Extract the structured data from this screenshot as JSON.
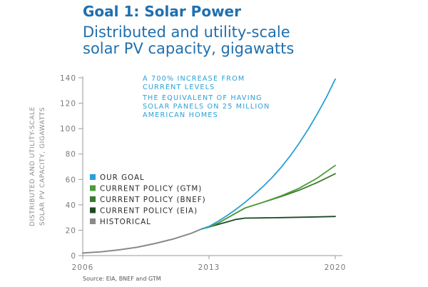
{
  "header": {
    "goal_title": "Goal 1: Solar Power",
    "subtitle_line1": "Distributed and utility-scale",
    "subtitle_line2": "solar PV capacity, gigawatts"
  },
  "source": "Source: EIA, BNEF and GTM",
  "colors": {
    "title": "#1f6fae",
    "annotation": "#2aa0d6",
    "our_goal": "#2aa0d6",
    "gtm": "#4f9a3a",
    "bnef": "#3c7a2c",
    "eia": "#1d4a22",
    "historical": "#8a8a8a",
    "axis": "#9a9a9a"
  },
  "chart_data": {
    "type": "line",
    "ylabel_line1": "DISTRIBUTED AND UTILITY-SCALE",
    "ylabel_line2": "SOLAR PV CAPACITY, GIGAWATTS",
    "xlabel": "",
    "xlim": [
      2006,
      2020
    ],
    "ylim": [
      0,
      140
    ],
    "x_ticks": [
      "2006",
      "2013",
      "2020"
    ],
    "y_ticks": [
      "0",
      "20",
      "40",
      "60",
      "80",
      "100",
      "120",
      "140"
    ],
    "grid": false,
    "legend_position": "left-middle",
    "annotations": [
      "A 700% INCREASE FROM",
      "CURRENT LEVELS",
      "THE EQUIVALENT OF HAVING",
      "SOLAR PANELS ON 25 MILLION",
      "AMERICAN HOMES"
    ],
    "series": [
      {
        "name": "OUR GOAL",
        "color": "#2aa0d6",
        "x": [
          2012.6,
          2013,
          2013.5,
          2014,
          2014.5,
          2015,
          2015.5,
          2016,
          2016.5,
          2017,
          2017.5,
          2018,
          2018.5,
          2019,
          2019.5,
          2020
        ],
        "y": [
          21,
          23,
          27,
          31.5,
          36.5,
          42,
          48,
          54.5,
          61.5,
          69.5,
          78.5,
          88.5,
          99.5,
          111.5,
          124.5,
          139
        ]
      },
      {
        "name": "CURRENT POLICY (GTM)",
        "color": "#4f9a3a",
        "x": [
          2012.6,
          2013,
          2013.5,
          2014,
          2014.5,
          2015,
          2016,
          2017,
          2018,
          2019,
          2020
        ],
        "y": [
          21,
          22.5,
          25.5,
          29.5,
          33.5,
          37.5,
          42,
          47,
          53,
          61,
          71
        ]
      },
      {
        "name": "CURRENT POLICY (BNEF)",
        "color": "#3c7a2c",
        "x": [
          2012.6,
          2013,
          2013.5,
          2014,
          2014.5,
          2015,
          2016,
          2017,
          2018,
          2019,
          2020
        ],
        "y": [
          21,
          22.5,
          25.5,
          29.5,
          33.5,
          37.5,
          42,
          46.5,
          51.5,
          57.5,
          64.5
        ]
      },
      {
        "name": "CURRENT POLICY (EIA)",
        "color": "#1d4a22",
        "x": [
          2012.6,
          2013,
          2013.5,
          2014,
          2014.5,
          2015,
          2016,
          2017,
          2018,
          2019,
          2020
        ],
        "y": [
          21,
          22.5,
          24.5,
          26.5,
          28.5,
          29.5,
          29.7,
          29.9,
          30.2,
          30.5,
          30.8
        ]
      },
      {
        "name": "HISTORICAL",
        "color": "#8a8a8a",
        "x": [
          2006,
          2007,
          2008,
          2009,
          2010,
          2011,
          2012,
          2012.6
        ],
        "y": [
          2,
          3,
          4.5,
          6.5,
          9.5,
          13,
          17.5,
          21
        ]
      }
    ]
  }
}
